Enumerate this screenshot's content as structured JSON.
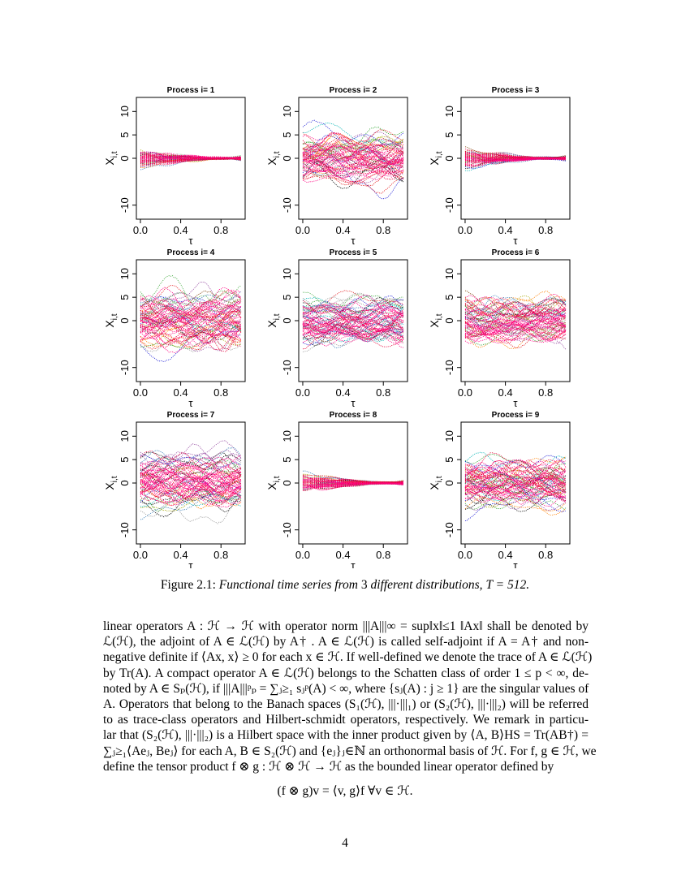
{
  "chart_data": [
    {
      "type": "line",
      "title": "Process i= 1",
      "xlabel": "τ",
      "ylabel": "X",
      "ylabel_sub": "i,t",
      "xlim": [
        -0.04,
        1.04
      ],
      "ylim": [
        -13,
        13
      ],
      "xticks": [
        {
          "value": 0,
          "label": "0.0"
        },
        0.4,
        0.8
      ],
      "yticks": [
        -10,
        0,
        5,
        10
      ],
      "envelope": "funnel",
      "spread": 3
    },
    {
      "type": "line",
      "title": "Process i= 2",
      "xlabel": "τ",
      "ylabel": "X",
      "ylabel_sub": "i,t",
      "xlim": [
        -0.04,
        1.04
      ],
      "ylim": [
        -13,
        13
      ],
      "xticks": [
        {
          "value": 0,
          "label": "0.0"
        },
        0.4,
        0.8
      ],
      "yticks": [
        -10,
        0,
        5,
        10
      ],
      "envelope": "flat",
      "spread": 8
    },
    {
      "type": "line",
      "title": "Process i= 3",
      "xlabel": "τ",
      "ylabel": "X",
      "ylabel_sub": "i,t",
      "xlim": [
        -0.04,
        1.04
      ],
      "ylim": [
        -13,
        13
      ],
      "xticks": [
        {
          "value": 0,
          "label": "0.0"
        },
        0.4,
        0.8
      ],
      "yticks": [
        -10,
        0,
        5,
        10
      ],
      "envelope": "funnel",
      "spread": 3
    },
    {
      "type": "line",
      "title": "Process i= 4",
      "xlabel": "τ",
      "ylabel": "X",
      "ylabel_sub": "i,t",
      "xlim": [
        -0.04,
        1.04
      ],
      "ylim": [
        -13,
        13
      ],
      "xticks": [
        {
          "value": 0,
          "label": "0.0"
        },
        0.4,
        0.8
      ],
      "yticks": [
        -10,
        0,
        5,
        10
      ],
      "envelope": "flat",
      "spread": 9
    },
    {
      "type": "line",
      "title": "Process i= 5",
      "xlabel": "τ",
      "ylabel": "X",
      "ylabel_sub": "i,t",
      "xlim": [
        -0.04,
        1.04
      ],
      "ylim": [
        -13,
        13
      ],
      "xticks": [
        {
          "value": 0,
          "label": "0.0"
        },
        0.4,
        0.8
      ],
      "yticks": [
        -10,
        0,
        5,
        10
      ],
      "envelope": "flat",
      "spread": 8
    },
    {
      "type": "line",
      "title": "Process i= 6",
      "xlabel": "τ",
      "ylabel": "X",
      "ylabel_sub": "i,t",
      "xlim": [
        -0.04,
        1.04
      ],
      "ylim": [
        -13,
        13
      ],
      "xticks": [
        {
          "value": 0,
          "label": "0.0"
        },
        0.4,
        0.8
      ],
      "yticks": [
        -10,
        0,
        5,
        10
      ],
      "envelope": "flat",
      "spread": 8
    },
    {
      "type": "line",
      "title": "Process i= 7",
      "xlabel": "τ",
      "ylabel": "X",
      "ylabel_sub": "i,t",
      "xlim": [
        -0.04,
        1.04
      ],
      "ylim": [
        -13,
        13
      ],
      "xticks": [
        {
          "value": 0,
          "label": "0.0"
        },
        0.4,
        0.8
      ],
      "yticks": [
        -10,
        0,
        5,
        10
      ],
      "envelope": "flat",
      "spread": 9
    },
    {
      "type": "line",
      "title": "Process i= 8",
      "xlabel": "τ",
      "ylabel": "X",
      "ylabel_sub": "i,t",
      "xlim": [
        -0.04,
        1.04
      ],
      "ylim": [
        -13,
        13
      ],
      "xticks": [
        {
          "value": 0,
          "label": "0.0"
        },
        0.4,
        0.8
      ],
      "yticks": [
        -10,
        0,
        5,
        10
      ],
      "envelope": "funnel",
      "spread": 3
    },
    {
      "type": "line",
      "title": "Process i= 9",
      "xlabel": "τ",
      "ylabel": "X",
      "ylabel_sub": "i,t",
      "xlim": [
        -0.04,
        1.04
      ],
      "ylim": [
        -13,
        13
      ],
      "xticks": [
        {
          "value": 0,
          "label": "0.0"
        },
        0.4,
        0.8
      ],
      "yticks": [
        -10,
        0,
        5,
        10
      ],
      "envelope": "flat",
      "spread": 8
    }
  ],
  "caption": {
    "label": "Figure 2.1:",
    "text": "Functional time series from",
    "number": "3",
    "text2": "different distributions,",
    "tail": "T = 512."
  },
  "body": {
    "lines": [
      "linear operators A : ℋ → ℋ with operator norm |||A|||∞ = sup‖x‖≤1 ‖Ax‖ shall be denoted by",
      "ℒ(ℋ), the adjoint of A ∈ ℒ(ℋ) by A† . A ∈ ℒ(ℋ) is called self-adjoint if A = A† and non-",
      "negative definite if ⟨Ax, x⟩ ≥ 0 for each x ∈ ℋ. If well-defined we denote the trace of A ∈ ℒ(ℋ)",
      "by Tr(A). A compact operator A ∈ ℒ(ℋ) belongs to the Schatten class of order 1 ≤ p < ∞, de-",
      "noted by A ∈ Sₚ(ℋ), if |||A|||ᵖₚ = ∑ⱼ≥₁ sⱼᵖ(A) < ∞, where {sⱼ(A) : j ≥ 1} are the singular values of",
      "A. Operators that belong to the Banach spaces (S₁(ℋ), |||·|||₁) or (S₂(ℋ), |||·|||₂) will be referred",
      "to as trace-class operators and Hilbert-schmidt operators, respectively. We remark in particu-",
      "lar that (S₂(ℋ), |||·|||₂) is a Hilbert space with the inner product given by ⟨A, B⟩HS = Tr(AB†) =",
      "∑ⱼ≥₁⟨Aeⱼ, Beⱼ⟩ for each A, B ∈ S₂(ℋ) and {eⱼ}ⱼ∈ℕ an orthonormal basis of ℋ. For f, g ∈ ℋ, we",
      "define the tensor product f ⊗ g : ℋ ⊗ ℋ → ℋ as the bounded linear operator defined by"
    ],
    "formula": "(f ⊗ g)v = ⟨v, g⟩f     ∀v ∈ ℋ."
  },
  "page_number": "4"
}
